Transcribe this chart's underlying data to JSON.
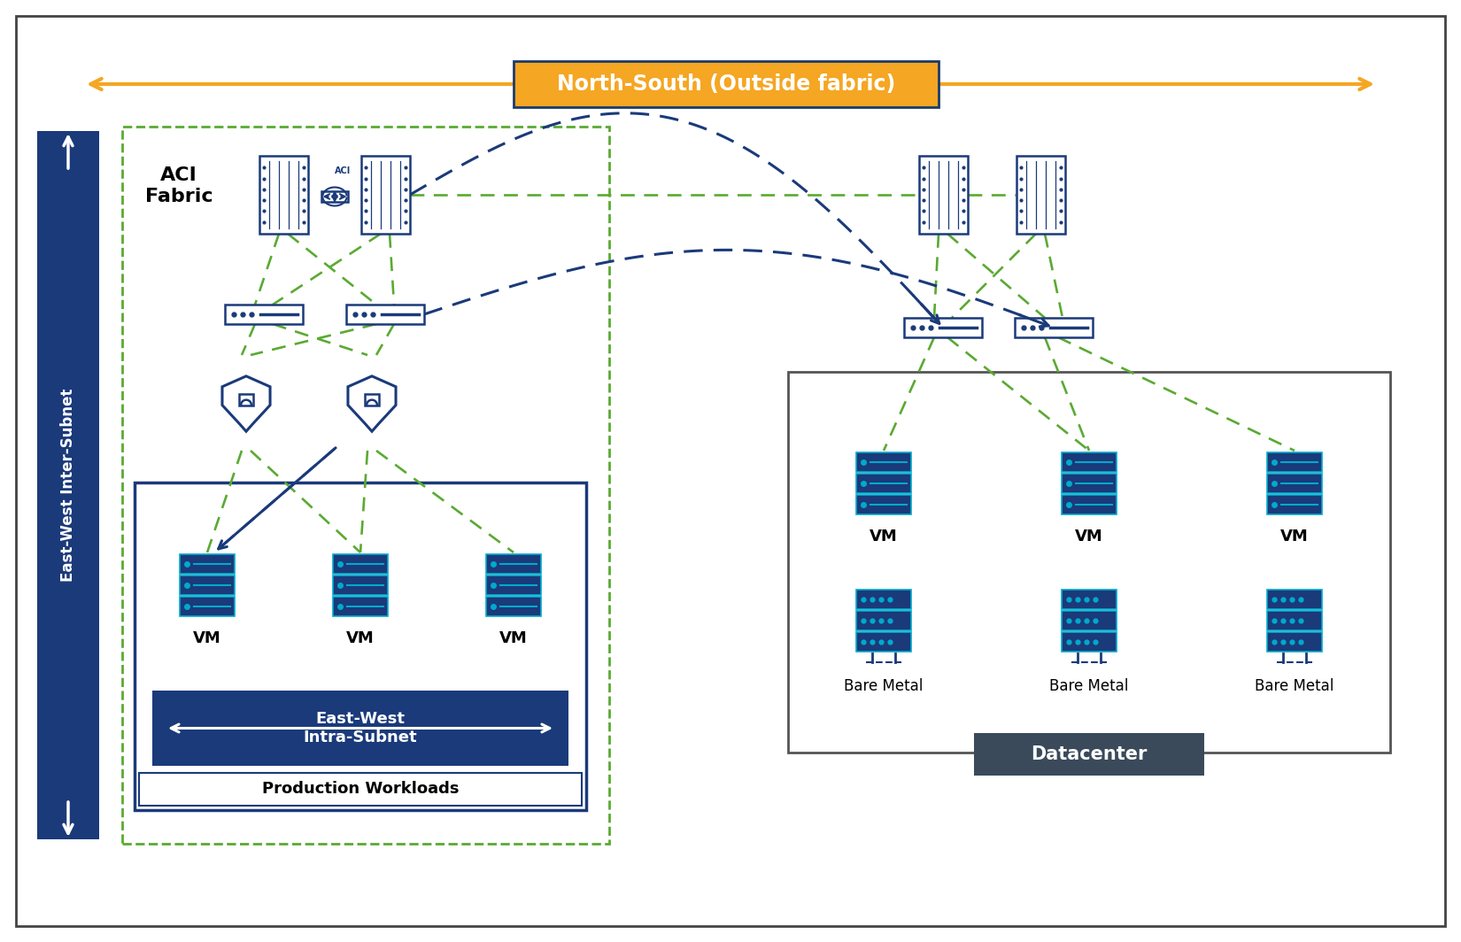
{
  "bg_color": "#ffffff",
  "outer_border_color": "#444444",
  "ns_arrow_color": "#F5A623",
  "ns_label": "North-South (Outside fabric)",
  "ns_label_bg": "#F5A623",
  "ns_label_border": "#1a3a6a",
  "ns_text_color": "#ffffff",
  "ew_bar_color": "#1a3a7a",
  "ew_label": "East-West Inter-Subnet",
  "green_color": "#5aaa32",
  "blue_color": "#1a3a7a",
  "cyan_color": "#00aacc",
  "prod_box_color": "#1a3a7a",
  "prod_label": "Production Workloads",
  "dc_box_color": "#555555",
  "dc_bg_color": "#3a4a5a",
  "dc_label": "Datacenter",
  "ew_intra_label": "East-West\nIntra-Subnet",
  "aci_label": "ACI\nFabric",
  "vm_label": "VM",
  "bare_label": "Bare Metal"
}
